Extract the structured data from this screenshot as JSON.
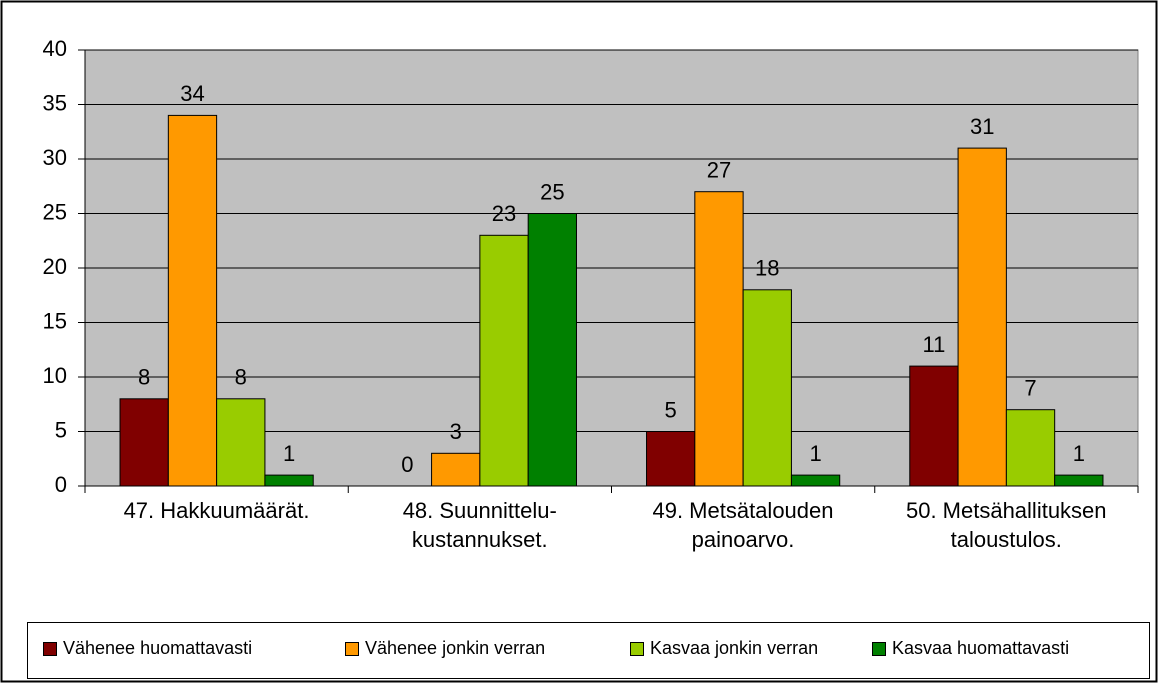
{
  "chart_data": {
    "type": "bar",
    "categories": [
      "47. Hakkuumäärät.",
      "48. Suunnittelu-\nkustannukset.",
      "49. Metsätalouden\npainoarvo.",
      "50. Metsähallituksen\ntaloustulos."
    ],
    "series": [
      {
        "name": "Vähenee huomattavasti",
        "color": "#800000",
        "values": [
          8,
          0,
          5,
          11
        ]
      },
      {
        "name": "Vähenee jonkin verran",
        "color": "#ff9900",
        "values": [
          34,
          3,
          27,
          31
        ]
      },
      {
        "name": "Kasvaa jonkin verran",
        "color": "#99cc00",
        "values": [
          8,
          23,
          18,
          7
        ]
      },
      {
        "name": "Kasvaa huomattavasti",
        "color": "#008000",
        "values": [
          1,
          25,
          1,
          1
        ]
      }
    ],
    "ylim": [
      0,
      40
    ],
    "yticks": [
      0,
      5,
      10,
      15,
      20,
      25,
      30,
      35,
      40
    ],
    "grid": true,
    "legend": "bottom",
    "plot_background": "#c0c0c0"
  }
}
